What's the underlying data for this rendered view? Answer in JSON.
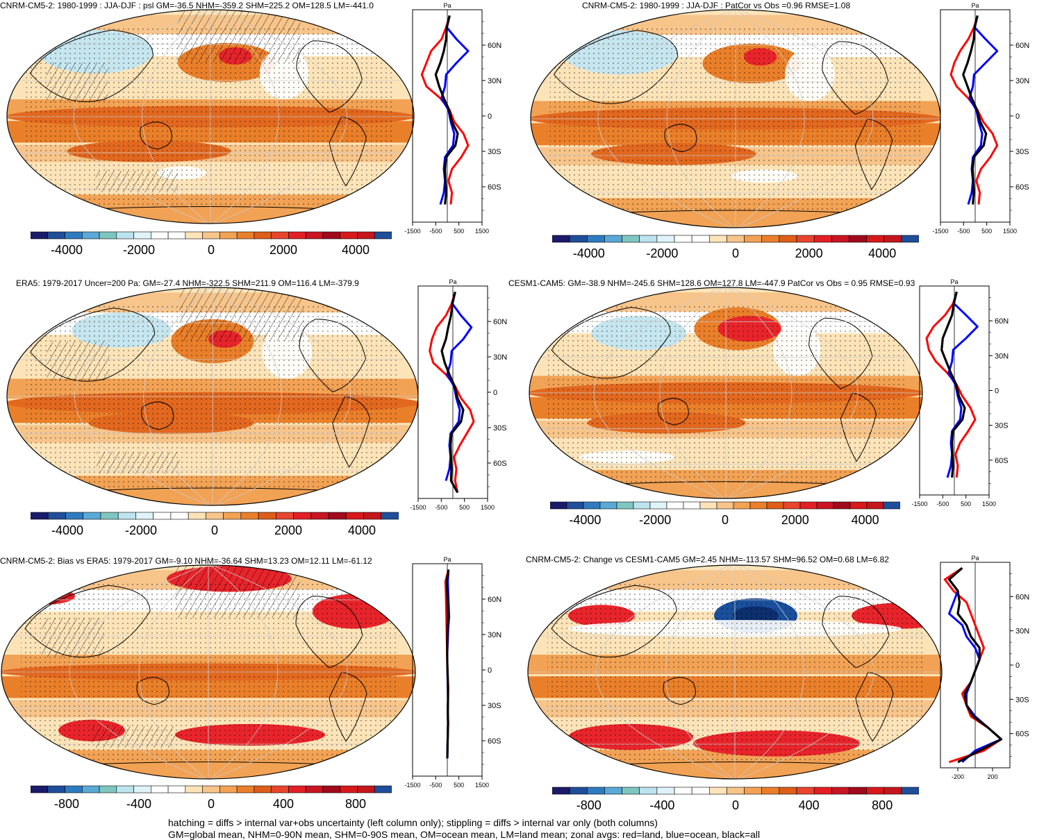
{
  "footer": {
    "line1": "hatching = diffs > internal var+obs uncertainty (left column only); stippling = diffs > internal var only (both columns)",
    "line2": "GM=global mean, NHM=0-90N mean, SHM=0-90S mean, OM=ocean mean, LM=land mean; zonal avgs: red=land, blue=ocean, black=all"
  },
  "colors": {
    "land": "#ff0000",
    "ocean": "#0000ff",
    "all": "#000000",
    "map_bg": "#f5b36b",
    "warm_strong": "#e85a1c",
    "warm_peak": "#e8242b",
    "cool": "#c6e6ef",
    "cool_strong": "#1a4f9c"
  },
  "palette": [
    "#1b1b6b",
    "#1f4e9a",
    "#2f7bbf",
    "#5aa9d6",
    "#7fc6c0",
    "#bde4ee",
    "#e0f3f8",
    "#ffffff",
    "#ffffff",
    "#fde4b8",
    "#f7c48a",
    "#f2a254",
    "#ea7f2a",
    "#dd5e1a",
    "#e8452e",
    "#e31f26",
    "#c81423",
    "#a10a1d",
    "#d7191c",
    "#c4161c",
    "#1f4e9a"
  ],
  "panels": [
    {
      "title": "CNRM-CM5-2: 1980-1999 : JJA-DJF : psl GM=-36.5 NHM=-359.2 SHM=225.2 OM=128.5 LM=-441.0",
      "unit": "Pa",
      "lat_labels": [
        "60N",
        "30N",
        "0",
        "30S",
        "60S"
      ],
      "zonal_ticks": [
        "-1500",
        "-500",
        "500",
        "1500"
      ],
      "colorbar_ticks": [
        "-4000",
        "-2000",
        "0",
        "2000",
        "4000"
      ],
      "hatching": true
    },
    {
      "title": "CNRM-CM5-2: 1980-1999 : JJA-DJF : PatCor vs Obs =0.96 RMSE=1.08",
      "unit": "Pa",
      "lat_labels": [
        "60N",
        "30N",
        "0",
        "30S",
        "60S"
      ],
      "zonal_ticks": [
        "-1500",
        "-500",
        "500",
        "1500"
      ],
      "colorbar_ticks": [
        "-4000",
        "-2000",
        "0",
        "2000",
        "4000"
      ],
      "hatching": false
    },
    {
      "title": "ERA5: 1979-2017 Uncer=200 Pa: GM=-27.4 NHM=-322.5 SHM=211.9 OM=116.4 LM=-379.9",
      "unit": "Pa",
      "lat_labels": [
        "60N",
        "30N",
        "0",
        "30S",
        "60S"
      ],
      "zonal_ticks": [
        "-1500",
        "-500",
        "500",
        "1500"
      ],
      "colorbar_ticks": [
        "-4000",
        "-2000",
        "0",
        "2000",
        "4000"
      ],
      "hatching": true
    },
    {
      "title": "CESM1-CAM5: GM=-38.9 NHM=-245.6 SHM=128.6 OM=127.8 LM=-447.9 PatCor vs Obs = 0.95 RMSE=0.93",
      "unit": "Pa",
      "lat_labels": [
        "60N",
        "30N",
        "0",
        "30S",
        "60S"
      ],
      "zonal_ticks": [
        "-1500",
        "-500",
        "500",
        "1500"
      ],
      "colorbar_ticks": [
        "-4000",
        "-2000",
        "0",
        "2000",
        "4000"
      ],
      "hatching": false
    },
    {
      "title": "CNRM-CM5-2: Bias vs ERA5: 1979-2017 GM=-9.10 NHM=-36.64 SHM=13.23 OM=12.11 LM=-61.12",
      "unit": "Pa",
      "lat_labels": [
        "60N",
        "30N",
        "0",
        "30S",
        "60S"
      ],
      "zonal_ticks": [
        "-1500",
        "-500",
        "500",
        "1500"
      ],
      "colorbar_ticks": [
        "-800",
        "-400",
        "0",
        "400",
        "800"
      ],
      "hatching": true
    },
    {
      "title": "CNRM-CM5-2: Change vs CESM1-CAM5 GM=2.45 NHM=-113.57 SHM=96.52 OM=0.68 LM=6.82",
      "unit": "Pa",
      "lat_labels": [
        "60N",
        "30N",
        "0",
        "30S",
        "60S"
      ],
      "zonal_ticks": [
        "-200",
        "200"
      ],
      "colorbar_ticks": [
        "-800",
        "-400",
        "0",
        "400",
        "800"
      ],
      "hatching": false
    }
  ],
  "chart_data": [
    {
      "type": "heatmap",
      "title": "CNRM-CM5-2: 1980-1999 : JJA-DJF : psl GM=-36.5 NHM=-359.2 SHM=225.2 OM=128.5 LM=-441.0",
      "colorbar": {
        "range": [
          -5000,
          5000
        ],
        "ticks": [
          -4000,
          -2000,
          0,
          2000,
          4000
        ]
      },
      "zonal_mean": {
        "unit": "Pa",
        "xlim": [
          -1500,
          1500
        ],
        "lat": [
          85,
          75,
          65,
          55,
          45,
          35,
          25,
          15,
          5,
          -5,
          -15,
          -25,
          -35,
          -45,
          -55,
          -65,
          -75,
          -85
        ],
        "land": [
          100,
          -50,
          -250,
          -700,
          -900,
          -1100,
          -900,
          -300,
          100,
          300,
          700,
          900,
          600,
          200,
          50,
          200,
          150,
          null
        ],
        "ocean": [
          100,
          -20,
          400,
          900,
          400,
          -50,
          -100,
          -250,
          50,
          150,
          300,
          250,
          -100,
          -150,
          -100,
          -150,
          -300,
          null
        ],
        "all": [
          100,
          -20,
          -50,
          -150,
          -300,
          -500,
          -350,
          -150,
          80,
          200,
          450,
          350,
          -50,
          -100,
          -80,
          -50,
          -100,
          null
        ]
      }
    },
    {
      "type": "heatmap",
      "title": "CNRM-CM5-2: 1980-1999 : JJA-DJF : PatCor vs Obs =0.96 RMSE=1.08",
      "colorbar": {
        "range": [
          -5000,
          5000
        ],
        "ticks": [
          -4000,
          -2000,
          0,
          2000,
          4000
        ]
      },
      "zonal_mean": {
        "unit": "Pa",
        "xlim": [
          -1500,
          1500
        ],
        "lat": [
          85,
          75,
          65,
          55,
          45,
          35,
          25,
          15,
          5,
          -5,
          -15,
          -25,
          -35,
          -45,
          -55,
          -65,
          -75,
          -85
        ],
        "land": [
          100,
          -50,
          -300,
          -650,
          -900,
          -1050,
          -800,
          -300,
          100,
          350,
          750,
          950,
          650,
          250,
          50,
          200,
          150,
          null
        ],
        "ocean": [
          100,
          -20,
          450,
          950,
          450,
          -50,
          -100,
          -250,
          50,
          150,
          300,
          250,
          -100,
          -150,
          -100,
          -150,
          -300,
          null
        ],
        "all": [
          100,
          -20,
          -60,
          -180,
          -330,
          -520,
          -330,
          -150,
          80,
          220,
          470,
          370,
          -60,
          -110,
          -80,
          -60,
          -100,
          null
        ]
      }
    },
    {
      "type": "heatmap",
      "title": "ERA5: 1979-2017 Uncer=200 Pa: GM=-27.4 NHM=-322.5 SHM=211.9 OM=116.4 LM=-379.9",
      "colorbar": {
        "range": [
          -5000,
          5000
        ],
        "ticks": [
          -4000,
          -2000,
          0,
          2000,
          4000
        ]
      },
      "zonal_mean": {
        "unit": "Pa",
        "xlim": [
          -1500,
          1500
        ],
        "lat": [
          85,
          75,
          65,
          55,
          45,
          35,
          25,
          15,
          5,
          -5,
          -15,
          -25,
          -35,
          -45,
          -55,
          -65,
          -75,
          -85
        ],
        "land": [
          100,
          -50,
          -300,
          -700,
          -900,
          -1000,
          -850,
          -300,
          100,
          350,
          750,
          900,
          600,
          300,
          50,
          150,
          100,
          200
        ],
        "ocean": [
          100,
          -20,
          350,
          800,
          450,
          -50,
          -100,
          -250,
          50,
          150,
          300,
          250,
          -100,
          -150,
          -100,
          -150,
          -300,
          null
        ],
        "all": [
          100,
          -20,
          -80,
          -200,
          -300,
          -480,
          -350,
          -150,
          80,
          200,
          450,
          350,
          -60,
          -100,
          -80,
          -60,
          -80,
          200
        ]
      }
    },
    {
      "type": "heatmap",
      "title": "CESM1-CAM5: GM=-38.9 NHM=-245.6 SHM=128.6 OM=127.8 LM=-447.9 PatCor vs Obs = 0.95 RMSE=0.93",
      "colorbar": {
        "range": [
          -5000,
          5000
        ],
        "ticks": [
          -4000,
          -2000,
          0,
          2000,
          4000
        ]
      },
      "zonal_mean": {
        "unit": "Pa",
        "xlim": [
          -1500,
          1500
        ],
        "lat": [
          85,
          75,
          65,
          55,
          45,
          35,
          25,
          15,
          5,
          -5,
          -15,
          -25,
          -35,
          -45,
          -55,
          -65,
          -75,
          -85
        ],
        "land": [
          100,
          -50,
          -400,
          -900,
          -1200,
          -1100,
          -800,
          -300,
          100,
          350,
          700,
          900,
          600,
          250,
          50,
          150,
          100,
          null
        ],
        "ocean": [
          100,
          -20,
          500,
          1000,
          500,
          -50,
          -100,
          -250,
          50,
          150,
          300,
          250,
          -100,
          -150,
          -100,
          -150,
          -300,
          null
        ],
        "all": [
          100,
          -20,
          -100,
          -300,
          -500,
          -550,
          -350,
          -150,
          80,
          200,
          450,
          350,
          -60,
          -100,
          -80,
          -60,
          -100,
          null
        ]
      }
    },
    {
      "type": "heatmap",
      "title": "CNRM-CM5-2: Bias vs ERA5: 1979-2017 GM=-9.10 NHM=-36.64 SHM=13.23 OM=12.11 LM=-61.12",
      "colorbar": {
        "range": [
          -1000,
          1000
        ],
        "ticks": [
          -800,
          -400,
          0,
          400,
          800
        ]
      },
      "zonal_mean": {
        "unit": "Pa",
        "xlim": [
          -1500,
          1500
        ],
        "lat": [
          85,
          75,
          65,
          55,
          45,
          35,
          25,
          15,
          5,
          -5,
          -15,
          -25,
          -35,
          -45,
          -55,
          -65,
          -75,
          -85
        ],
        "land": [
          50,
          -80,
          -60,
          -50,
          -40,
          -30,
          -20,
          -10,
          0,
          20,
          40,
          30,
          20,
          40,
          20,
          10,
          0,
          null
        ],
        "ocean": [
          50,
          20,
          40,
          60,
          80,
          40,
          20,
          0,
          0,
          10,
          20,
          30,
          20,
          30,
          20,
          10,
          0,
          null
        ],
        "all": [
          50,
          -20,
          0,
          20,
          30,
          10,
          0,
          -5,
          0,
          15,
          30,
          30,
          20,
          30,
          20,
          10,
          0,
          null
        ]
      }
    },
    {
      "type": "heatmap",
      "title": "CNRM-CM5-2: Change vs CESM1-CAM5 GM=2.45 NHM=-113.57 SHM=96.52 OM=0.68 LM=6.82",
      "colorbar": {
        "range": [
          -1000,
          1000
        ],
        "ticks": [
          -800,
          -400,
          0,
          400,
          800
        ]
      },
      "zonal_mean": {
        "unit": "Pa",
        "xlim": [
          -400,
          400
        ],
        "lat": [
          85,
          75,
          65,
          55,
          45,
          35,
          25,
          15,
          5,
          -5,
          -15,
          -25,
          -35,
          -45,
          -55,
          -65,
          -75,
          -85
        ],
        "land": [
          -150,
          -350,
          -250,
          -100,
          -50,
          0,
          50,
          100,
          50,
          0,
          -50,
          -150,
          -100,
          -50,
          150,
          300,
          100,
          -300
        ],
        "ocean": [
          -150,
          -300,
          -200,
          -250,
          -300,
          -150,
          -100,
          0,
          50,
          0,
          -50,
          -100,
          -100,
          0,
          150,
          300,
          0,
          -150
        ],
        "all": [
          -150,
          -300,
          -200,
          -180,
          -200,
          -100,
          -50,
          50,
          50,
          0,
          -50,
          -120,
          -100,
          -20,
          150,
          300,
          50,
          -200
        ]
      }
    }
  ]
}
